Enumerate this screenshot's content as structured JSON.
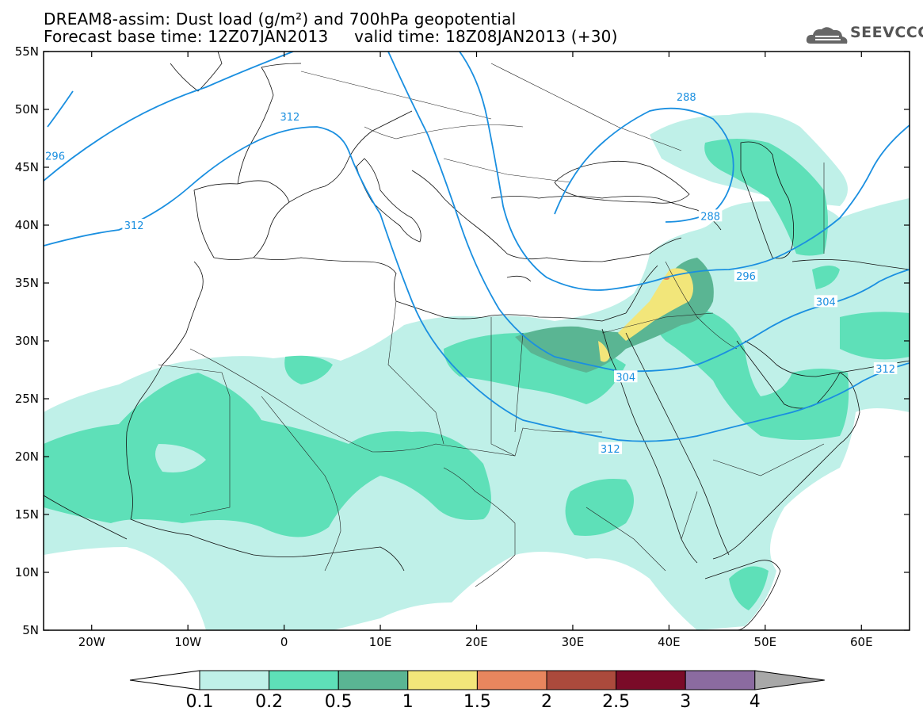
{
  "title": {
    "line1": "DREAM8-assim: Dust load (g/m²) and 700hPa geopotential",
    "line2": "Forecast base time: 12Z07JAN2013     valid time: 18Z08JAN2013 (+30)"
  },
  "logo": {
    "text": "SEEVCCC",
    "icon": "cloud-icon"
  },
  "map": {
    "lon_range": [
      -25,
      65
    ],
    "lat_range": [
      5,
      55
    ],
    "lat_ticks": [
      "5N",
      "10N",
      "15N",
      "20N",
      "25N",
      "30N",
      "35N",
      "40N",
      "45N",
      "50N",
      "55N"
    ],
    "lon_ticks": [
      "20W",
      "10W",
      "0",
      "10E",
      "20E",
      "30E",
      "40E",
      "50E",
      "60E"
    ],
    "contour_labels": [
      {
        "text": "296",
        "lon": -23.8,
        "lat": 46.0
      },
      {
        "text": "312",
        "lon": -15.6,
        "lat": 40.0
      },
      {
        "text": "312",
        "lon": 0.6,
        "lat": 49.4
      },
      {
        "text": "288",
        "lon": 41.8,
        "lat": 51.1
      },
      {
        "text": "288",
        "lon": 44.3,
        "lat": 40.8
      },
      {
        "text": "296",
        "lon": 48.0,
        "lat": 35.6
      },
      {
        "text": "304",
        "lon": 56.3,
        "lat": 33.4
      },
      {
        "text": "304",
        "lon": 35.5,
        "lat": 26.9
      },
      {
        "text": "312",
        "lon": 62.5,
        "lat": 27.6
      },
      {
        "text": "312",
        "lon": 33.9,
        "lat": 20.7
      }
    ],
    "colors": {
      "contour": "#1a8fe0",
      "level1": "#bff0e8",
      "level2": "#5ee0b8",
      "level3": "#5ab593",
      "level4": "#f2e67a",
      "level5": "#e8865e",
      "level6": "#ab4a3c",
      "level7": "#7a0b28",
      "level8": "#8b6ba0",
      "over": "#a8a8a8"
    }
  },
  "colorbar": {
    "labels": [
      "0.1",
      "0.2",
      "0.5",
      "1",
      "1.5",
      "2",
      "2.5",
      "3",
      "4"
    ],
    "colors": [
      "#bff0e8",
      "#5ee0b8",
      "#5ab593",
      "#f2e67a",
      "#e8865e",
      "#ab4a3c",
      "#7a0b28",
      "#8b6ba0"
    ],
    "under_color": "#ffffff",
    "over_color": "#a8a8a8"
  }
}
